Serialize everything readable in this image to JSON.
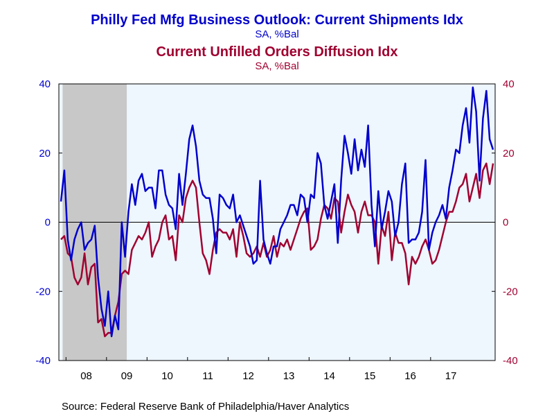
{
  "title_line1": "Philly Fed Mfg Business Outlook: Current Shipments Idx",
  "subtitle_line1": "SA, %Bal",
  "title_line2": "Current Unfilled Orders Diffusion Idx",
  "subtitle_line2": "SA, %Bal",
  "source": "Source:  Federal Reserve Bank of Philadelphia/Haver Analytics",
  "colors": {
    "shipments": "#0000cc",
    "unfilled": "#a00030",
    "plot_bg": "#eef6fe",
    "recession": "#c8c8c8",
    "left_axis": "#0000cc",
    "right_axis": "#a00030"
  },
  "chart_data": {
    "type": "line",
    "x_start": "2007-11",
    "frequency": "monthly",
    "xlabels": [
      "08",
      "09",
      "10",
      "11",
      "12",
      "13",
      "14",
      "15",
      "16",
      "17"
    ],
    "left_axis": {
      "ticks": [
        "40",
        "20",
        "0",
        "-20",
        "-40"
      ],
      "ylim": [
        -40,
        40
      ],
      "color": "#0000cc"
    },
    "right_axis": {
      "ticks": [
        "40",
        "20",
        "0",
        "-20",
        "-40"
      ],
      "ylim": [
        -40,
        40
      ],
      "color": "#a00030"
    },
    "recession": {
      "start": "2007-12",
      "end": "2009-06"
    },
    "zero_line": true,
    "series": [
      {
        "name": "Current Shipments Idx",
        "color": "#0000cc",
        "values": [
          6,
          15,
          -5,
          -11,
          -5,
          -2,
          0,
          -8,
          -6,
          -5,
          -1,
          -16,
          -25,
          -30,
          -20,
          -33,
          -27,
          -31,
          0,
          -10,
          3,
          11,
          5,
          12,
          14,
          9,
          10,
          10,
          4,
          15,
          15,
          8,
          5,
          4,
          -2,
          14,
          5,
          14,
          24,
          28,
          22,
          12,
          8,
          7,
          7,
          1,
          -9,
          8,
          7,
          5,
          4,
          8,
          0,
          2,
          -1,
          -4,
          -7,
          -12,
          -11,
          12,
          -5,
          -9,
          -12,
          -7,
          -7,
          -2,
          0,
          2,
          5,
          5,
          2,
          8,
          7,
          0,
          8,
          7,
          20,
          17,
          5,
          1,
          6,
          11,
          -6,
          12,
          25,
          20,
          14,
          24,
          15,
          21,
          16,
          28,
          5,
          -7,
          9,
          -2,
          3,
          9,
          6,
          -4,
          0,
          11,
          17,
          -6,
          -5,
          -5,
          -3,
          3,
          18,
          -8,
          -3,
          0,
          2,
          5,
          1,
          10,
          15,
          21,
          20,
          28,
          33,
          23,
          39,
          32,
          12,
          30,
          38,
          24,
          21
        ]
      },
      {
        "name": "Current Unfilled Orders Diffusion Idx",
        "color": "#a00030",
        "values": [
          -5,
          -4,
          -9,
          -10,
          -16,
          -18,
          -16,
          -9,
          -18,
          -13,
          -12,
          -29,
          -28,
          -33,
          -32,
          -32,
          -27,
          -23,
          -15,
          -14,
          -15,
          -8,
          -6,
          -4,
          -5,
          -3,
          0,
          -10,
          -7,
          -5,
          0,
          2,
          -5,
          -4,
          -11,
          2,
          0,
          7,
          10,
          12,
          10,
          0,
          -9,
          -11,
          -15,
          -8,
          -3,
          -2,
          -3,
          -3,
          -5,
          -2,
          -10,
          0,
          -4,
          -9,
          -10,
          -9,
          -7,
          -10,
          -6,
          -10,
          -8,
          -4,
          -10,
          -6,
          -7,
          -5,
          -8,
          -5,
          -2,
          1,
          3,
          4,
          -8,
          -7,
          -5,
          1,
          5,
          4,
          1,
          7,
          6,
          -3,
          3,
          8,
          5,
          3,
          -3,
          3,
          6,
          2,
          2,
          0,
          -12,
          -1,
          -4,
          3,
          -11,
          -3,
          -6,
          -6,
          -9,
          -18,
          -10,
          -12,
          -10,
          -7,
          -5,
          -8,
          -12,
          -11,
          -8,
          -4,
          0,
          3,
          3,
          6,
          10,
          11,
          14,
          6,
          10,
          14,
          7,
          15,
          17,
          11,
          17
        ]
      }
    ]
  }
}
